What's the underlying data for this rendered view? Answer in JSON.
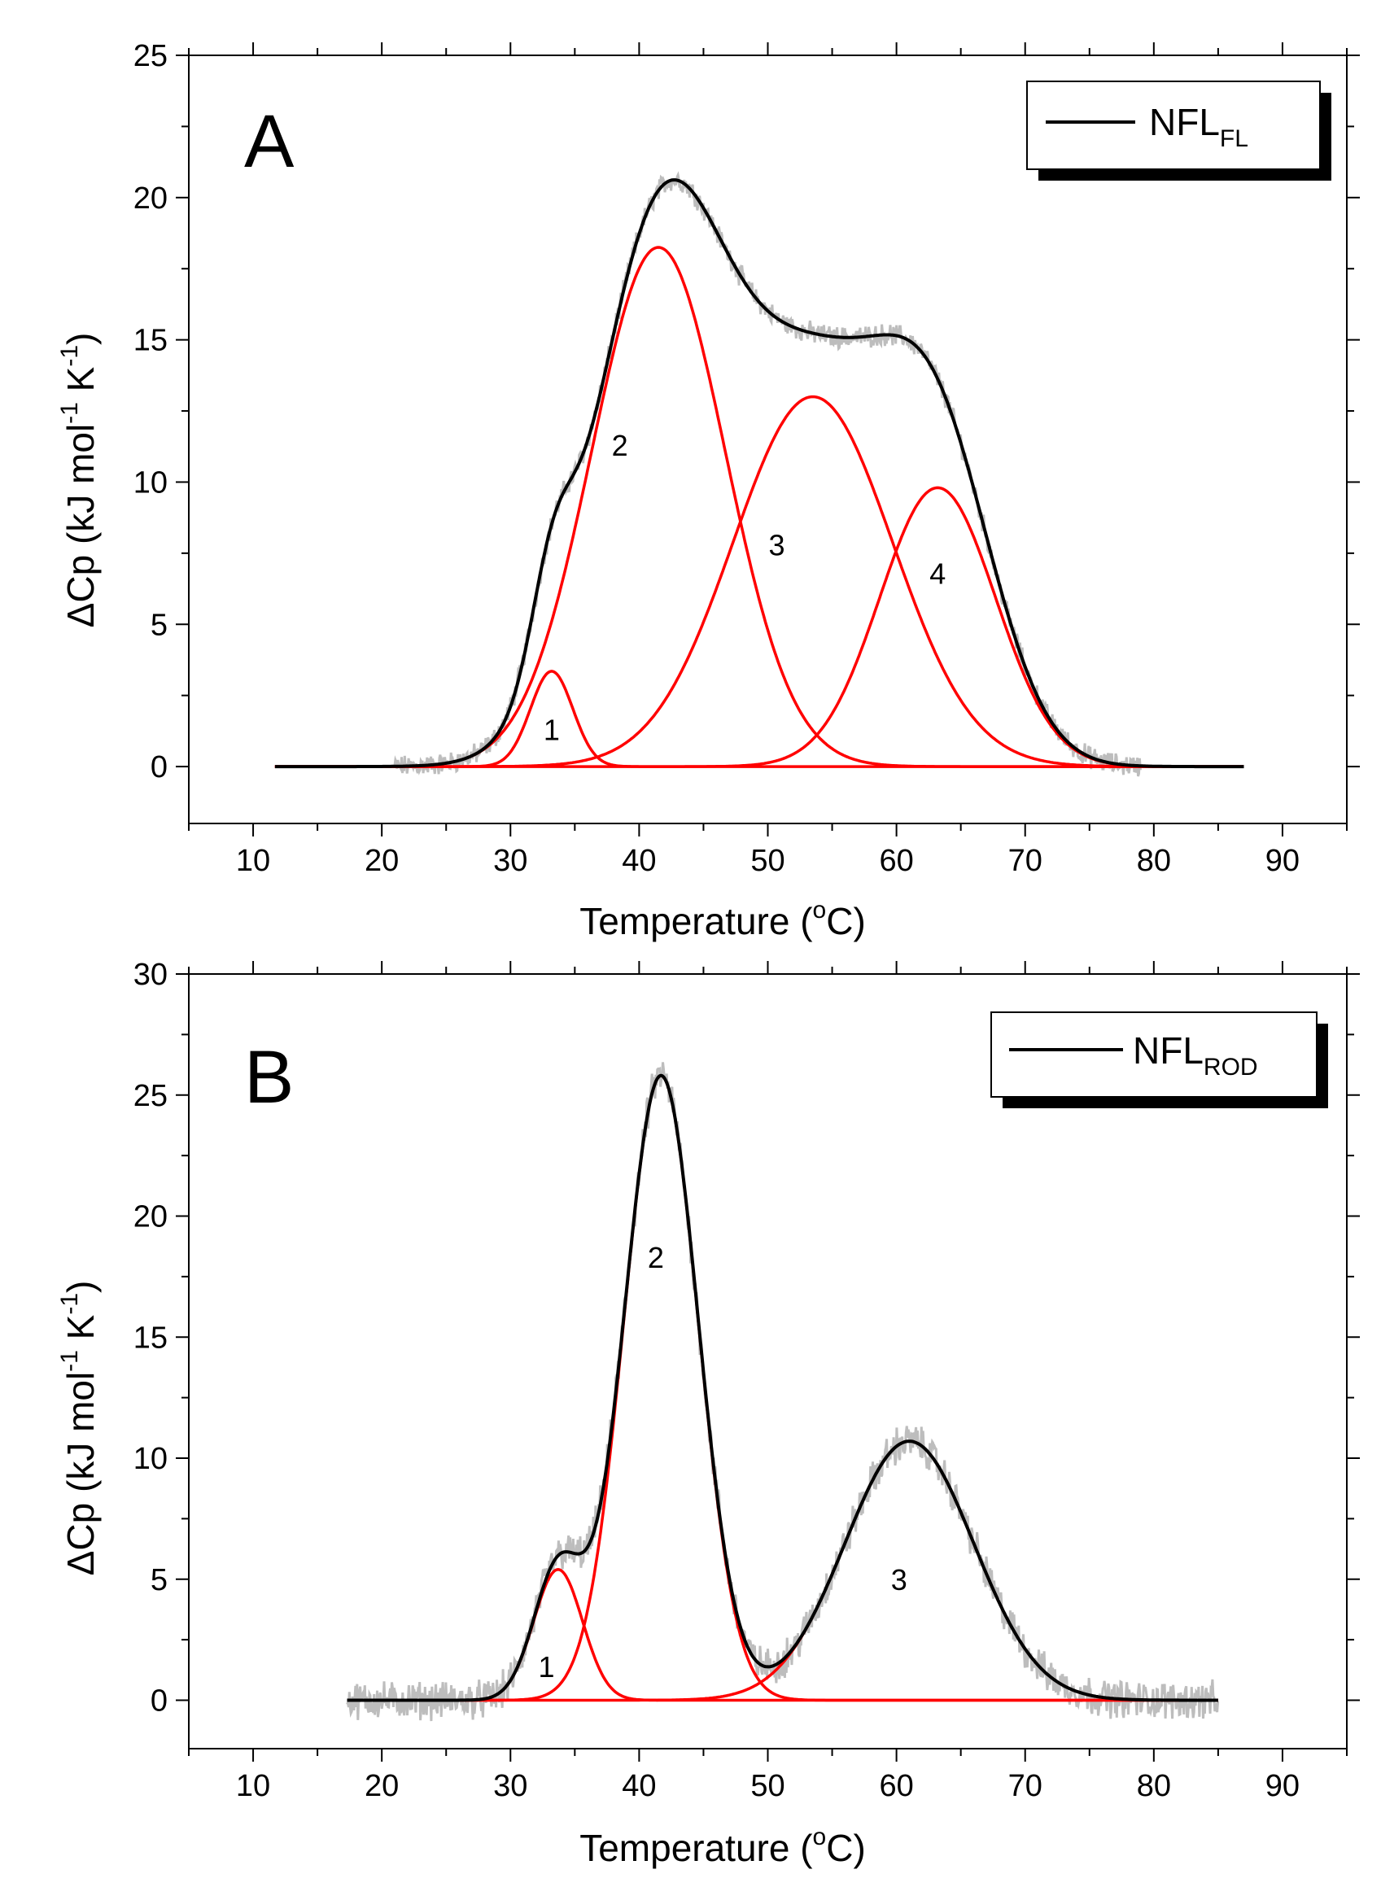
{
  "chart_data": [
    {
      "type": "line",
      "panel_label": "A",
      "xlabel": "Temperature",
      "xlabel_unit_sup": "o",
      "xlabel_unit": "C",
      "ylabel": "ΔCp (kJ  mol",
      "ylabel_sup1": "-1",
      "ylabel_mid": " K",
      "ylabel_sup2": "-1",
      "ylabel_end": ")",
      "xlim": [
        5,
        95
      ],
      "ylim": [
        -2,
        25
      ],
      "x_ticks": [
        10,
        20,
        30,
        40,
        50,
        60,
        70,
        80,
        90
      ],
      "y_ticks": [
        0,
        5,
        10,
        15,
        20,
        25
      ],
      "legend": {
        "position": "top-right",
        "label_main": "NFL",
        "label_sub": "FL"
      },
      "x_range": [
        11.7,
        87
      ],
      "noise_range": [
        21,
        79
      ],
      "noise_amplitude": 0.3,
      "peaks": [
        {
          "label": "1",
          "center": 33.2,
          "height": 3.35,
          "width": 1.65
        },
        {
          "label": "2",
          "center": 41.5,
          "height": 18.25,
          "width": 5.2
        },
        {
          "label": "3",
          "center": 53.5,
          "height": 13.0,
          "width": 6.2
        },
        {
          "label": "4",
          "center": 63.2,
          "height": 9.8,
          "width": 4.5
        }
      ],
      "peak_label_positions": [
        [
          33.2,
          1.3
        ],
        [
          38.5,
          11.3
        ],
        [
          50.7,
          7.8
        ],
        [
          63.2,
          6.8
        ]
      ],
      "colors": {
        "sum": "#000000",
        "component": "#ff0000",
        "raw": "#bdbdbd"
      }
    },
    {
      "type": "line",
      "panel_label": "B",
      "xlabel": "Temperature",
      "xlabel_unit_sup": "o",
      "xlabel_unit": "C",
      "ylabel": "ΔCp (kJ  mol",
      "ylabel_sup1": "-1",
      "ylabel_mid": " K",
      "ylabel_sup2": "-1",
      "ylabel_end": ")",
      "xlim": [
        5,
        95
      ],
      "ylim": [
        -2,
        30
      ],
      "x_ticks": [
        10,
        20,
        30,
        40,
        50,
        60,
        70,
        80,
        90
      ],
      "y_ticks": [
        0,
        5,
        10,
        15,
        20,
        25,
        30
      ],
      "legend": {
        "position": "top-right",
        "label_main": "NFL",
        "label_sub": "ROD"
      },
      "x_range": [
        17.3,
        85
      ],
      "noise_range": [
        17.3,
        85
      ],
      "noise_amplitude": 0.6,
      "peaks": [
        {
          "label": "1",
          "center": 33.7,
          "height": 5.4,
          "width": 1.9
        },
        {
          "label": "2",
          "center": 41.7,
          "height": 25.8,
          "width": 2.9
        },
        {
          "label": "3",
          "center": 61.0,
          "height": 10.7,
          "width": 5.0
        }
      ],
      "peak_label_positions": [
        [
          32.8,
          1.4
        ],
        [
          41.3,
          18.3
        ],
        [
          60.2,
          5.0
        ]
      ],
      "colors": {
        "sum": "#000000",
        "component": "#ff0000",
        "raw": "#bdbdbd"
      }
    }
  ]
}
